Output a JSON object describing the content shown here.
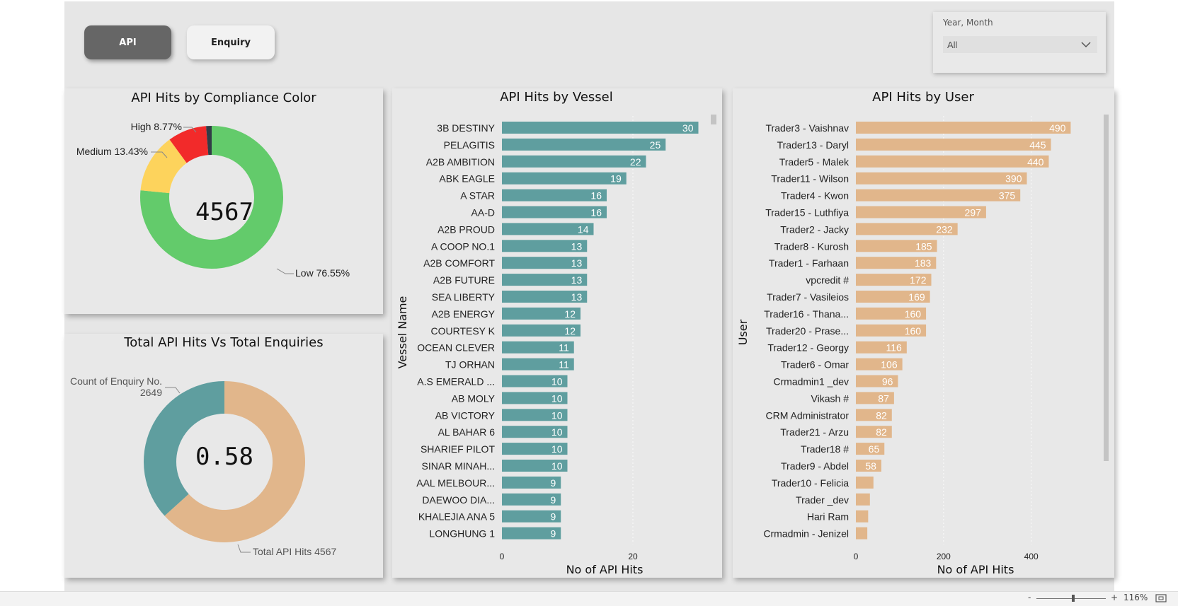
{
  "nav": {
    "api_label": "API",
    "enquiry_label": "Enquiry"
  },
  "slicer": {
    "label": "Year, Month",
    "value": "All"
  },
  "compliance": {
    "title": "API Hits by Compliance Color",
    "center_value": "4567",
    "labels": {
      "high": "High 8.77%",
      "medium": "Medium 13.43%",
      "low": "Low 76.55%"
    },
    "colors": {
      "high": "#f22a2a",
      "medium": "#fdd35c",
      "low": "#63cb6b",
      "other": "#323d46"
    }
  },
  "totals": {
    "title": "Total API Hits Vs Total Enquiries",
    "center_value": "0.58",
    "enquiry_label_1": "Count of Enquiry No.",
    "enquiry_label_2": "2649",
    "api_label": "Total API Hits 4567",
    "colors": {
      "api": "#e1b68b",
      "enquiry": "#5f9e9f"
    }
  },
  "chart_data": [
    {
      "type": "pie",
      "title": "API Hits by Compliance Color",
      "categories": [
        "Low",
        "Medium",
        "High",
        "Other"
      ],
      "values": [
        76.55,
        13.43,
        8.77,
        1.25
      ],
      "center_value": 4567
    },
    {
      "type": "pie",
      "title": "Total API Hits Vs Total Enquiries",
      "categories": [
        "Total API Hits",
        "Count of Enquiry No."
      ],
      "values": [
        4567,
        2649
      ],
      "center_value": 0.58
    },
    {
      "type": "bar",
      "title": "API Hits by Vessel",
      "xlabel": "No of API Hits",
      "ylabel": "Vessel Name",
      "xlim": [
        0,
        32
      ],
      "ticks": [
        0,
        20
      ],
      "color": "#5f9e9f",
      "categories": [
        "3B DESTINY",
        "PELAGITIS",
        "A2B AMBITION",
        "ABK EAGLE",
        "A STAR",
        "AA-D",
        "A2B PROUD",
        "A COOP NO.1",
        "A2B COMFORT",
        "A2B FUTURE",
        "SEA LIBERTY",
        "A2B ENERGY",
        "COURTESY K",
        "OCEAN CLEVER",
        "TJ ORHAN",
        "A.S EMERALD ...",
        "AB MOLY",
        "AB VICTORY",
        "AL BAHAR 6",
        "SHARIEF PILOT",
        "SINAR MINAH...",
        "AAL MELBOUR...",
        "DAEWOO DIA...",
        "KHALEJIA ANA 5",
        "LONGHUNG 1"
      ],
      "values": [
        30,
        25,
        22,
        19,
        16,
        16,
        14,
        13,
        13,
        13,
        13,
        12,
        12,
        11,
        11,
        10,
        10,
        10,
        10,
        10,
        10,
        9,
        9,
        9,
        9
      ]
    },
    {
      "type": "bar",
      "title": "API Hits by User",
      "xlabel": "No of API Hits",
      "ylabel": "User",
      "xlim": [
        0,
        520
      ],
      "ticks": [
        0,
        200,
        400
      ],
      "color": "#e1b68b",
      "categories": [
        "Trader3 - Vaishnav",
        "Trader13 - Daryl",
        "Trader5 - Malek",
        "Trader11 - Wilson",
        "Trader4 - Kwon",
        "Trader15 - Luthfiya",
        "Trader2 - Jacky",
        "Trader8 - Kurosh",
        "Trader1 - Farhaan",
        "vpcredit #",
        "Trader7 - Vasileios",
        "Trader16 - Thana...",
        "Trader20 - Prase...",
        "Trader12 - Georgy",
        "Trader6 - Omar",
        "Crmadmin1 _dev",
        "Vikash #",
        "CRM Administrator",
        "Trader21 - Arzu",
        "Trader18 #",
        "Trader9 - Abdel",
        "Trader10 - Felicia",
        "Trader _dev",
        "Hari Ram",
        "Crmadmin - Jenizel"
      ],
      "values": [
        490,
        445,
        440,
        390,
        375,
        297,
        232,
        185,
        183,
        172,
        169,
        160,
        160,
        116,
        106,
        96,
        87,
        82,
        82,
        65,
        58,
        40,
        32,
        28,
        26
      ],
      "value_labels": [
        "490",
        "445",
        "440",
        "390",
        "375",
        "297",
        "232",
        "185",
        "183",
        "172",
        "169",
        "160",
        "160",
        "116",
        "106",
        "96",
        "87",
        "82",
        "82",
        "65",
        "58",
        "",
        "",
        "",
        ""
      ]
    }
  ],
  "footer": {
    "zoom_minus": "-",
    "zoom_plus": "+",
    "zoom_level": "116%"
  }
}
